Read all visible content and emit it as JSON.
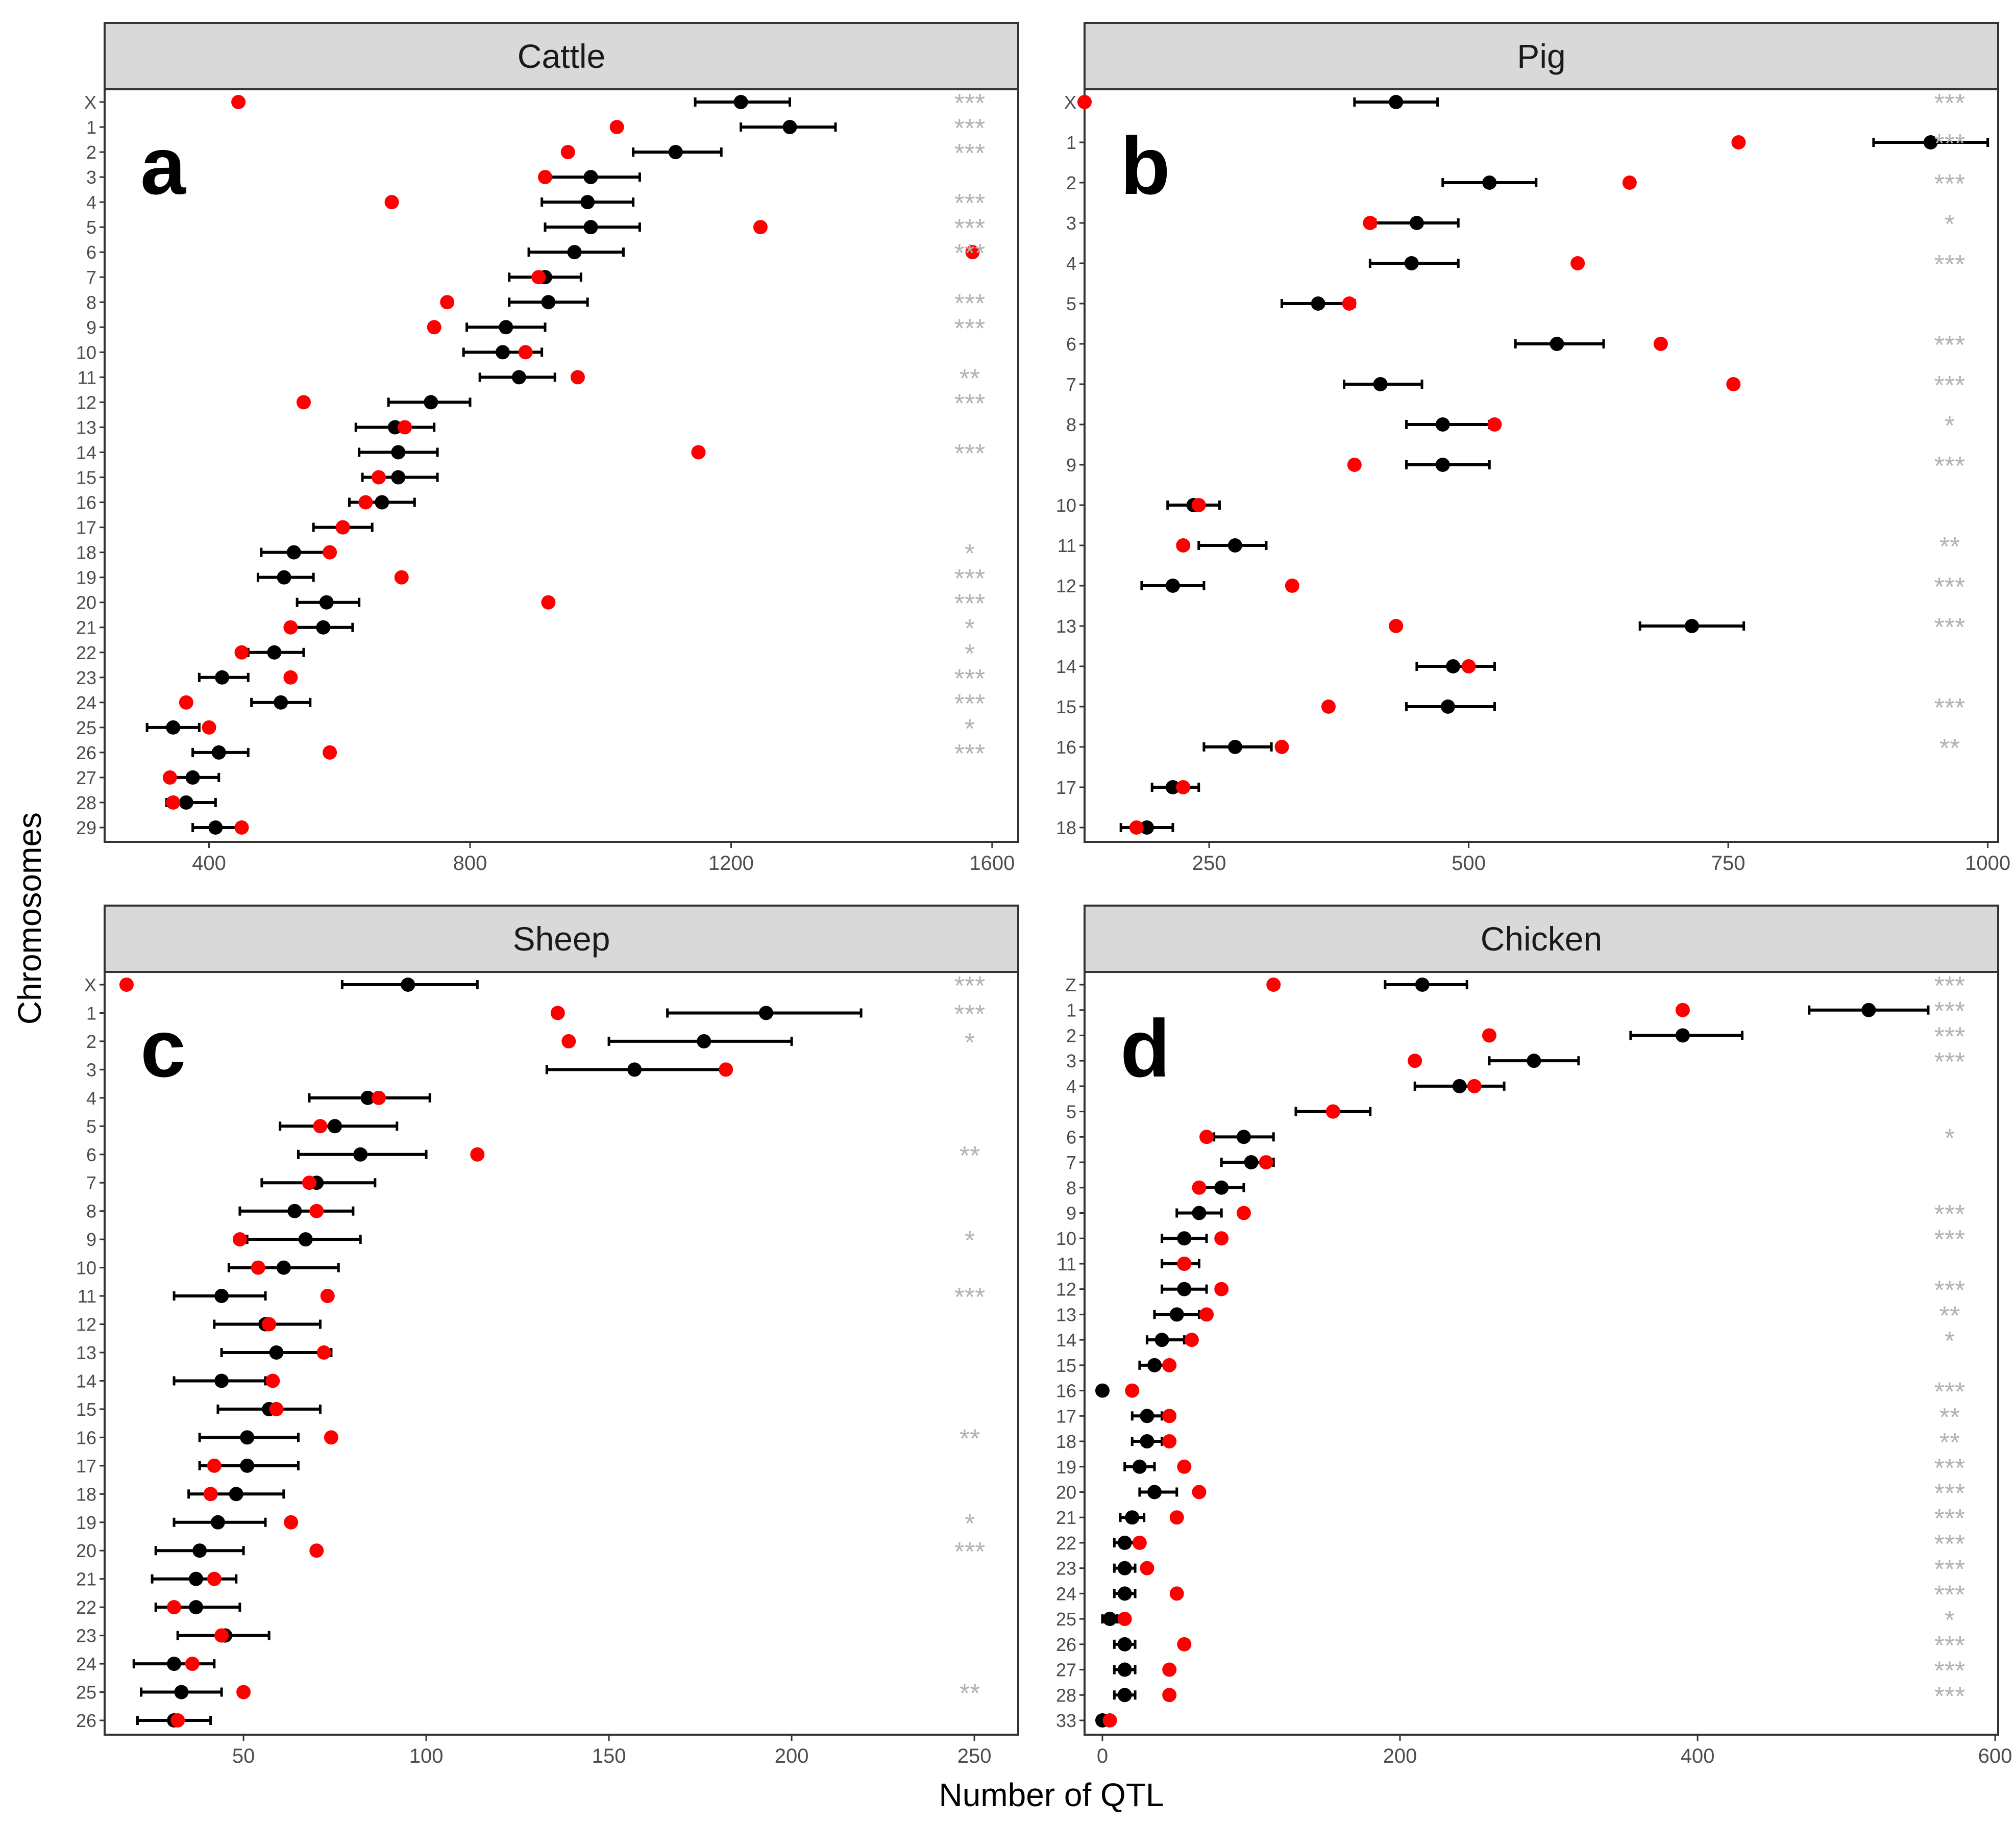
{
  "figure": {
    "xlabel": "Number of QTL",
    "ylabel": "Chromosomes",
    "legend": "none",
    "colors": {
      "observed": "#ff0000",
      "expected": "#000000",
      "significance": "#b3b3b3",
      "strip": "#d9d9d9"
    }
  },
  "chart_data": [
    {
      "type": "scatter",
      "title": "Cattle",
      "panel_label": "a",
      "xlim": [
        240,
        1640
      ],
      "xticks": [
        400,
        800,
        1200,
        1600
      ],
      "xlabel": "Number of QTL",
      "ylabel": "Chromosomes",
      "categories": [
        "X",
        "1",
        "2",
        "3",
        "4",
        "5",
        "6",
        "7",
        "8",
        "9",
        "10",
        "11",
        "12",
        "13",
        "14",
        "15",
        "16",
        "17",
        "18",
        "19",
        "20",
        "21",
        "22",
        "23",
        "24",
        "25",
        "26",
        "27",
        "28",
        "29"
      ],
      "series": [
        {
          "name": "observed",
          "values": [
            445,
            1025,
            950,
            915,
            680,
            1245,
            1570,
            905,
            765,
            745,
            885,
            965,
            545,
            700,
            1150,
            660,
            640,
            605,
            585,
            695,
            920,
            525,
            450,
            525,
            365,
            400,
            585,
            340,
            345,
            450
          ]
        },
        {
          "name": "expected",
          "values": [
            1215,
            1290,
            1115,
            985,
            980,
            985,
            960,
            915,
            920,
            855,
            850,
            875,
            740,
            685,
            690,
            690,
            665,
            605,
            530,
            515,
            580,
            575,
            500,
            420,
            510,
            345,
            415,
            375,
            365,
            410
          ]
        },
        {
          "name": "ci_low",
          "values": [
            1145,
            1215,
            1050,
            915,
            910,
            915,
            890,
            860,
            860,
            795,
            790,
            815,
            675,
            625,
            630,
            635,
            615,
            560,
            480,
            475,
            535,
            530,
            460,
            385,
            465,
            305,
            375,
            345,
            335,
            375
          ]
        },
        {
          "name": "ci_high",
          "values": [
            1290,
            1360,
            1185,
            1060,
            1050,
            1060,
            1035,
            970,
            980,
            915,
            910,
            930,
            800,
            745,
            750,
            750,
            715,
            650,
            580,
            560,
            630,
            620,
            545,
            460,
            555,
            385,
            460,
            415,
            410,
            450
          ]
        }
      ],
      "significance": [
        "***",
        "***",
        "***",
        "",
        "***",
        "***",
        "***",
        "",
        "***",
        "***",
        "",
        "**",
        "***",
        "",
        "***",
        "",
        "",
        "",
        "*",
        "***",
        "***",
        "*",
        "*",
        "***",
        "***",
        "*",
        "***",
        "",
        "",
        ""
      ]
    },
    {
      "type": "scatter",
      "title": "Pig",
      "panel_label": "b",
      "xlim": [
        130,
        1010
      ],
      "xticks": [
        250,
        500,
        750,
        1000
      ],
      "xlabel": "Number of QTL",
      "ylabel": "Chromosomes",
      "categories": [
        "X",
        "1",
        "2",
        "3",
        "4",
        "5",
        "6",
        "7",
        "8",
        "9",
        "10",
        "11",
        "12",
        "13",
        "14",
        "15",
        "16",
        "17",
        "18"
      ],
      "series": [
        {
          "name": "observed",
          "values": [
            130,
            760,
            655,
            405,
            605,
            385,
            685,
            755,
            525,
            390,
            240,
            225,
            330,
            430,
            500,
            365,
            320,
            225,
            180
          ]
        },
        {
          "name": "expected",
          "values": [
            430,
            945,
            520,
            450,
            445,
            355,
            585,
            415,
            475,
            475,
            235,
            275,
            215,
            715,
            485,
            480,
            275,
            215,
            190
          ]
        },
        {
          "name": "ci_low",
          "values": [
            390,
            890,
            475,
            410,
            405,
            320,
            545,
            380,
            440,
            440,
            210,
            240,
            185,
            665,
            450,
            440,
            245,
            195,
            165
          ]
        },
        {
          "name": "ci_high",
          "values": [
            470,
            1000,
            565,
            490,
            490,
            390,
            630,
            455,
            520,
            520,
            260,
            305,
            245,
            765,
            525,
            525,
            310,
            240,
            215
          ]
        }
      ],
      "significance": [
        "***",
        "***",
        "***",
        "*",
        "***",
        "",
        "***",
        "***",
        "*",
        "***",
        "",
        "**",
        "***",
        "***",
        "",
        "***",
        "**",
        "",
        ""
      ]
    },
    {
      "type": "scatter",
      "title": "Sheep",
      "panel_label": "c",
      "xlim": [
        12,
        262
      ],
      "xticks": [
        50,
        100,
        150,
        200,
        250
      ],
      "xlabel": "Number of QTL",
      "ylabel": "Chromosomes",
      "categories": [
        "X",
        "1",
        "2",
        "3",
        "4",
        "5",
        "6",
        "7",
        "8",
        "9",
        "10",
        "11",
        "12",
        "13",
        "14",
        "15",
        "16",
        "17",
        "18",
        "19",
        "20",
        "21",
        "22",
        "23",
        "24",
        "25",
        "26"
      ],
      "series": [
        {
          "name": "observed",
          "values": [
            18,
            136,
            139,
            182,
            87,
            71,
            114,
            68,
            70,
            49,
            54,
            73,
            57,
            72,
            58,
            59,
            74,
            42,
            41,
            63,
            70,
            42,
            31,
            44,
            36,
            50,
            32
          ]
        },
        {
          "name": "expected",
          "values": [
            95,
            193,
            176,
            157,
            84,
            75,
            82,
            70,
            64,
            67,
            61,
            44,
            56,
            59,
            44,
            57,
            51,
            51,
            48,
            43,
            38,
            37,
            37,
            45,
            31,
            33,
            31
          ]
        },
        {
          "name": "ci_low",
          "values": [
            77,
            166,
            150,
            133,
            68,
            60,
            65,
            55,
            49,
            51,
            46,
            31,
            42,
            44,
            31,
            43,
            38,
            38,
            35,
            31,
            26,
            25,
            26,
            32,
            20,
            22,
            21
          ]
        },
        {
          "name": "ci_high",
          "values": [
            114,
            219,
            200,
            181,
            101,
            92,
            100,
            86,
            80,
            82,
            76,
            56,
            71,
            74,
            56,
            71,
            65,
            65,
            61,
            56,
            50,
            48,
            49,
            57,
            42,
            44,
            41
          ]
        }
      ],
      "significance": [
        "***",
        "***",
        "*",
        "",
        "",
        "",
        "**",
        "",
        "",
        "*",
        "",
        "***",
        "",
        "",
        "",
        "",
        "**",
        "",
        "",
        "*",
        "***",
        "",
        "",
        "",
        "",
        "**",
        ""
      ]
    },
    {
      "type": "scatter",
      "title": "Chicken",
      "panel_label": "d",
      "xlim": [
        -12,
        602
      ],
      "xticks": [
        0,
        200,
        400,
        600
      ],
      "xlabel": "Number of QTL",
      "ylabel": "Chromosomes",
      "categories": [
        "Z",
        "1",
        "2",
        "3",
        "4",
        "5",
        "6",
        "7",
        "8",
        "9",
        "10",
        "11",
        "12",
        "13",
        "14",
        "15",
        "16",
        "17",
        "18",
        "19",
        "20",
        "21",
        "22",
        "23",
        "24",
        "25",
        "26",
        "27",
        "28",
        "33"
      ],
      "series": [
        {
          "name": "observed",
          "values": [
            115,
            390,
            260,
            210,
            250,
            155,
            70,
            110,
            65,
            95,
            80,
            55,
            80,
            70,
            60,
            45,
            20,
            45,
            45,
            55,
            65,
            50,
            25,
            30,
            50,
            15,
            55,
            45,
            45,
            5
          ]
        },
        {
          "name": "expected",
          "values": [
            215,
            515,
            390,
            290,
            240,
            155,
            95,
            100,
            80,
            65,
            55,
            55,
            55,
            50,
            40,
            35,
            0,
            30,
            30,
            25,
            35,
            20,
            15,
            15,
            15,
            5,
            15,
            15,
            15,
            0
          ]
        },
        {
          "name": "ci_low",
          "values": [
            190,
            475,
            355,
            260,
            210,
            130,
            75,
            80,
            65,
            50,
            40,
            40,
            40,
            35,
            30,
            25,
            0,
            20,
            20,
            15,
            25,
            12,
            8,
            8,
            8,
            0,
            8,
            8,
            8,
            0
          ]
        },
        {
          "name": "ci_high",
          "values": [
            245,
            555,
            430,
            320,
            270,
            180,
            115,
            115,
            95,
            80,
            70,
            65,
            70,
            65,
            55,
            45,
            0,
            40,
            40,
            35,
            50,
            28,
            22,
            22,
            22,
            10,
            22,
            22,
            22,
            0
          ]
        }
      ],
      "significance": [
        "***",
        "***",
        "***",
        "***",
        "",
        "",
        "*",
        "",
        "",
        "***",
        "***",
        "",
        "***",
        "**",
        "*",
        "",
        "***",
        "**",
        "**",
        "***",
        "***",
        "***",
        "***",
        "***",
        "***",
        "*",
        "***",
        "***",
        "***",
        ""
      ]
    }
  ]
}
